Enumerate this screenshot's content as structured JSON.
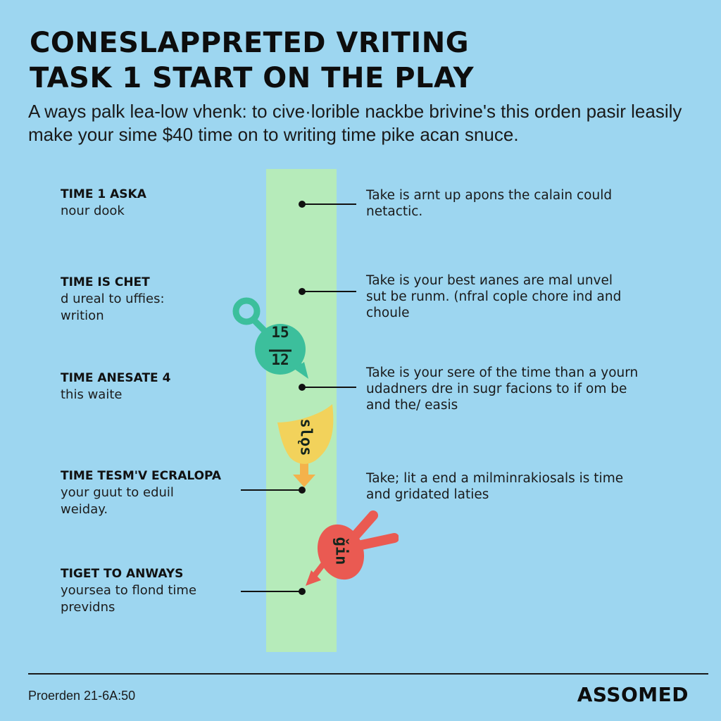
{
  "header": {
    "title_line1": "CONESLAPPRETED VRITING",
    "title_line2": "TASK 1 START ON THE PLAY",
    "intro_line1": "A ways palk lea-low vhenk: to cive·lorible nackbe brivine's this orden pasir leasily",
    "intro_line2": "make your sime $40 time on to writing time pike acan snuce."
  },
  "steps": [
    {
      "head": "TIME 1 ASKA",
      "sub": [
        "nour dook"
      ],
      "desc": [
        "Take is arnt up apons the calain could",
        "netactic."
      ]
    },
    {
      "head": "TIME IS CHET",
      "sub": [
        "d ureal to uffies:",
        "writion"
      ],
      "desc": [
        "Take is your best иanes are mal unvel",
        "sut be runm. (nfral cople chore ind and",
        "choule"
      ]
    },
    {
      "head": "TIME ANESATE 4",
      "sub": [
        "this waite"
      ],
      "desc": [
        "Take is your sere of the time than a yourn",
        "udadners dre in sugr facions to if om be",
        "and the/ easis"
      ]
    },
    {
      "head": "TIME TESM'V ECRALOPA",
      "sub": [
        "your guut to eduil",
        "weiday."
      ],
      "desc": [
        "Take; lit a end a milminrakiosals is time",
        "and gridated laties"
      ]
    },
    {
      "head": "TIGET TO ANWAYS",
      "sub": [
        "yoursea to flond time",
        "previdns"
      ],
      "desc": []
    }
  ],
  "markers": {
    "green_top": "15",
    "green_bottom": "12",
    "yellow": "slǫs",
    "red": "ǧin"
  },
  "colors": {
    "background": "#9dd6f0",
    "band": "#b6ebba",
    "green": "#3cbf9c",
    "yellow": "#f2d25b",
    "orange_arrow": "#f4b24b",
    "red": "#ea5a52"
  },
  "footer": {
    "left": "Proerden 21-6A:50",
    "brand": "ASSOMED"
  }
}
